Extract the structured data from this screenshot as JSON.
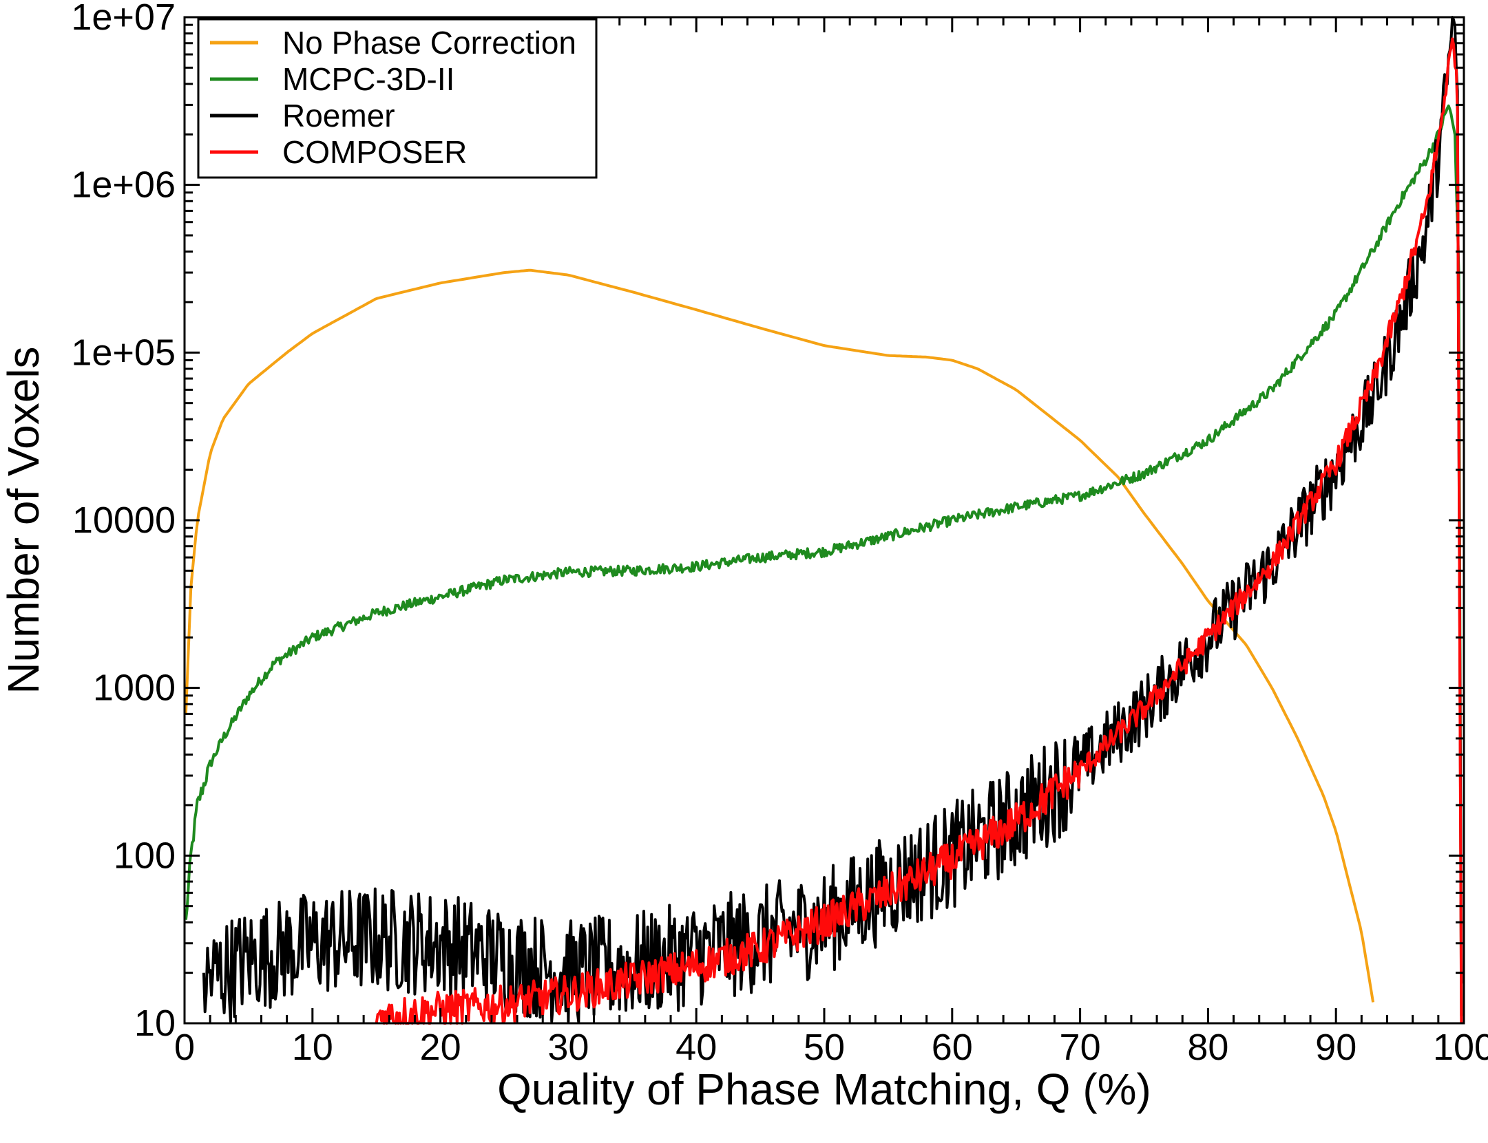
{
  "chart_data": {
    "type": "line",
    "title": "",
    "xlabel": "Quality of Phase Matching, Q (%)",
    "ylabel": "Number of Voxels",
    "xlim": [
      0,
      100
    ],
    "ylim": [
      10,
      10000000
    ],
    "yscale": "log",
    "grid": false,
    "legend_position": "top-left",
    "x_ticks": [
      0,
      10,
      20,
      30,
      40,
      50,
      60,
      70,
      80,
      90,
      100
    ],
    "x_tick_labels": [
      "0",
      "10",
      "20",
      "30",
      "40",
      "50",
      "60",
      "70",
      "80",
      "90",
      "100"
    ],
    "y_ticks": [
      10,
      100,
      1000,
      10000,
      100000,
      1000000,
      10000000
    ],
    "y_tick_labels": [
      "10",
      "100",
      "1000",
      "10000",
      "1e+05",
      "1e+06",
      "1e+07"
    ],
    "series": [
      {
        "name": "No Phase Correction",
        "color": "#f5a214",
        "noise": 0.0,
        "x": [
          0.1,
          0.5,
          1,
          2,
          3,
          5,
          8,
          10,
          15,
          20,
          25,
          27,
          30,
          35,
          40,
          45,
          50,
          55,
          58,
          60,
          62,
          65,
          70,
          73,
          75,
          78,
          80,
          83,
          85,
          87,
          89,
          90,
          91,
          92,
          93
        ],
        "y": [
          700,
          4000,
          10000,
          25000,
          40000,
          65000,
          100000,
          130000,
          210000,
          260000,
          300000,
          310000,
          290000,
          230000,
          180000,
          140000,
          110000,
          96000,
          94000,
          90000,
          80000,
          60000,
          30000,
          18000,
          11000,
          5500,
          3300,
          1800,
          1000,
          500,
          230,
          140,
          70,
          35,
          12
        ]
      },
      {
        "name": "MCPC-3D-II",
        "color": "#1e8a1e",
        "noise": 0.03,
        "x": [
          0.1,
          0.5,
          1,
          2,
          3,
          5,
          7,
          10,
          15,
          20,
          25,
          30,
          35,
          40,
          45,
          50,
          55,
          60,
          65,
          70,
          75,
          80,
          85,
          90,
          93,
          95,
          97,
          98,
          98.8,
          99.3,
          99.6,
          99.8
        ],
        "y": [
          40,
          100,
          200,
          350,
          500,
          900,
          1400,
          2000,
          2800,
          3500,
          4400,
          4900,
          5000,
          5300,
          6000,
          6500,
          8000,
          10000,
          12000,
          14000,
          19000,
          30000,
          60000,
          170000,
          420000,
          800000,
          1400000,
          2000000,
          3000000,
          2000000,
          300000,
          10
        ]
      },
      {
        "name": "Roemer",
        "color": "#000000",
        "noise": 0.2,
        "x": [
          1.5,
          5,
          10,
          15,
          20,
          25,
          30,
          35,
          40,
          45,
          50,
          55,
          60,
          65,
          70,
          75,
          80,
          85,
          90,
          93,
          95,
          97,
          98,
          98.8,
          99.2,
          99.5,
          99.8
        ],
        "y": [
          18,
          24,
          30,
          32,
          30,
          24,
          20,
          22,
          26,
          32,
          40,
          65,
          100,
          170,
          330,
          750,
          2000,
          5500,
          20000,
          55000,
          150000,
          500000,
          1500000,
          5000000,
          11000000,
          3000000,
          10
        ]
      },
      {
        "name": "COMPOSER",
        "color": "#ff0a0a",
        "noise": 0.07,
        "x": [
          15,
          20,
          25,
          30,
          35,
          40,
          45,
          50,
          55,
          60,
          65,
          70,
          75,
          80,
          85,
          90,
          93,
          95,
          97,
          98,
          98.8,
          99.2,
          99.5,
          99.8
        ],
        "y": [
          11,
          12,
          13,
          15,
          18,
          22,
          28,
          40,
          60,
          95,
          160,
          320,
          750,
          2000,
          5500,
          22000,
          70000,
          200000,
          700000,
          1800000,
          5000000,
          8000000,
          3000000,
          10
        ]
      }
    ]
  }
}
